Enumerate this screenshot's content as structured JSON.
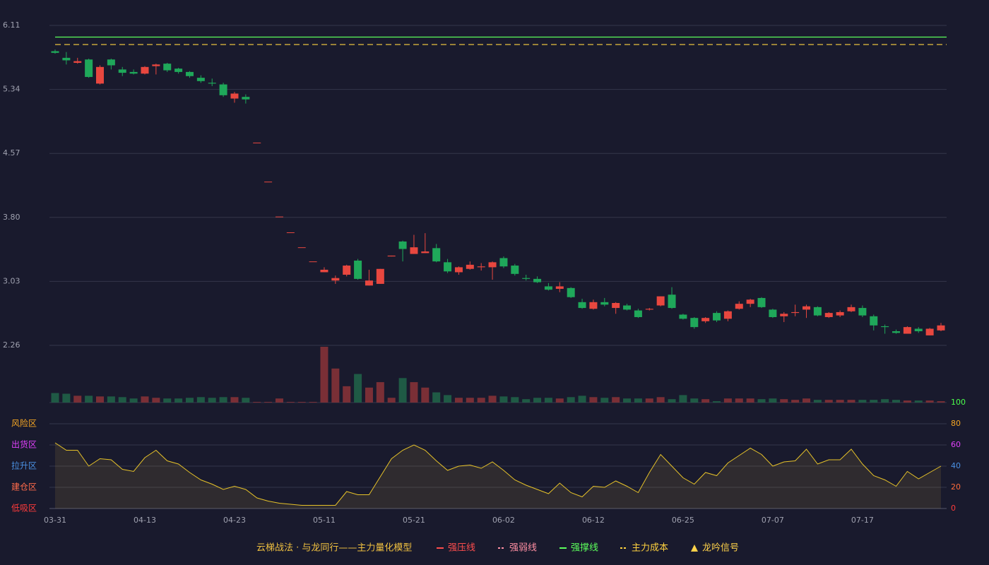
{
  "chart_data": {
    "type": "candlestick",
    "categories": [
      "03-31",
      null,
      null,
      null,
      null,
      null,
      null,
      null,
      "04-13",
      null,
      null,
      null,
      null,
      null,
      null,
      null,
      "04-23",
      null,
      null,
      null,
      null,
      null,
      null,
      null,
      "05-11",
      null,
      null,
      null,
      null,
      null,
      null,
      null,
      "05-21",
      null,
      null,
      null,
      null,
      null,
      null,
      null,
      "06-02",
      null,
      null,
      null,
      null,
      null,
      null,
      null,
      "06-12",
      null,
      null,
      null,
      null,
      null,
      null,
      null,
      "06-25",
      null,
      null,
      null,
      null,
      null,
      null,
      null,
      "07-07",
      null,
      null,
      null,
      null,
      null,
      null,
      null,
      "07-17",
      null,
      null,
      null,
      null,
      null,
      null,
      null
    ],
    "open": [
      5.8,
      5.72,
      5.66,
      5.7,
      5.41,
      5.7,
      5.58,
      5.55,
      5.53,
      5.62,
      5.65,
      5.59,
      5.55,
      5.48,
      5.42,
      5.4,
      5.23,
      5.25,
      4.7,
      4.23,
      3.81,
      3.62,
      3.44,
      3.27,
      3.14,
      3.04,
      3.11,
      3.28,
      2.98,
      3.0,
      3.33,
      3.51,
      3.36,
      3.37,
      3.43,
      3.26,
      3.14,
      3.18,
      3.2,
      3.2,
      3.31,
      3.22,
      3.07,
      3.06,
      2.97,
      2.94,
      2.95,
      2.78,
      2.7,
      2.78,
      2.71,
      2.74,
      2.68,
      2.69,
      2.74,
      2.87,
      2.63,
      2.59,
      2.55,
      2.65,
      2.58,
      2.7,
      2.76,
      2.83,
      2.69,
      2.61,
      2.65,
      2.69,
      2.72,
      2.6,
      2.62,
      2.67,
      2.71,
      2.61,
      2.49,
      2.43,
      2.4,
      2.46,
      2.38,
      2.44
    ],
    "high": [
      5.82,
      5.79,
      5.72,
      5.71,
      5.63,
      5.71,
      5.61,
      5.58,
      5.62,
      5.65,
      5.66,
      5.6,
      5.56,
      5.51,
      5.47,
      5.42,
      5.31,
      5.28,
      4.7,
      4.23,
      3.81,
      3.62,
      3.44,
      3.27,
      3.2,
      3.1,
      3.23,
      3.3,
      3.17,
      3.18,
      3.34,
      3.52,
      3.59,
      3.61,
      3.48,
      3.3,
      3.21,
      3.27,
      3.25,
      3.27,
      3.33,
      3.24,
      3.11,
      3.09,
      3.01,
      3.02,
      2.96,
      2.82,
      2.81,
      2.83,
      2.78,
      2.76,
      2.7,
      2.71,
      2.85,
      2.96,
      2.64,
      2.6,
      2.6,
      2.67,
      2.68,
      2.79,
      2.82,
      2.84,
      2.7,
      2.66,
      2.75,
      2.75,
      2.73,
      2.66,
      2.68,
      2.75,
      2.74,
      2.63,
      2.51,
      2.45,
      2.49,
      2.48,
      2.47,
      2.53
    ],
    "low": [
      5.77,
      5.64,
      5.65,
      5.48,
      5.4,
      5.58,
      5.5,
      5.52,
      5.52,
      5.52,
      5.55,
      5.53,
      5.48,
      5.42,
      5.38,
      5.25,
      5.18,
      5.17,
      4.7,
      4.23,
      3.81,
      3.62,
      3.44,
      3.27,
      3.14,
      3.0,
      3.09,
      3.05,
      2.98,
      3.0,
      3.33,
      3.27,
      3.36,
      3.37,
      3.26,
      3.13,
      3.11,
      3.17,
      3.16,
      3.05,
      3.19,
      3.1,
      3.04,
      3.01,
      2.92,
      2.9,
      2.83,
      2.7,
      2.69,
      2.73,
      2.64,
      2.68,
      2.59,
      2.68,
      2.73,
      2.7,
      2.57,
      2.46,
      2.53,
      2.54,
      2.55,
      2.69,
      2.72,
      2.71,
      2.59,
      2.54,
      2.61,
      2.59,
      2.61,
      2.59,
      2.6,
      2.66,
      2.6,
      2.44,
      2.4,
      2.4,
      2.4,
      2.41,
      2.38,
      2.43
    ],
    "close": [
      5.78,
      5.69,
      5.68,
      5.49,
      5.61,
      5.63,
      5.54,
      5.53,
      5.61,
      5.64,
      5.57,
      5.55,
      5.5,
      5.44,
      5.41,
      5.27,
      5.29,
      5.22,
      4.7,
      4.23,
      3.81,
      3.62,
      3.44,
      3.27,
      3.17,
      3.07,
      3.22,
      3.06,
      3.04,
      3.18,
      3.34,
      3.42,
      3.44,
      3.39,
      3.27,
      3.15,
      3.2,
      3.23,
      3.21,
      3.26,
      3.21,
      3.12,
      3.06,
      3.02,
      2.93,
      2.97,
      2.84,
      2.71,
      2.78,
      2.75,
      2.77,
      2.69,
      2.6,
      2.7,
      2.85,
      2.71,
      2.58,
      2.48,
      2.59,
      2.56,
      2.67,
      2.76,
      2.81,
      2.72,
      2.6,
      2.64,
      2.66,
      2.73,
      2.62,
      2.65,
      2.66,
      2.72,
      2.62,
      2.5,
      2.48,
      2.41,
      2.48,
      2.43,
      2.46,
      2.5
    ],
    "up_color": "#e8473f",
    "down_color": "#1fa85a",
    "ylim": [
      2.26,
      6.11
    ],
    "yticks": [
      6.11,
      5.34,
      4.57,
      {
        "value": 3.8,
        "label": "3.80"
      },
      3.03,
      2.26
    ],
    "grid": true,
    "volume": {
      "values": [
        14,
        13,
        10,
        10,
        9,
        9,
        8,
        6,
        9,
        7,
        6,
        6,
        7,
        8,
        7,
        8,
        8,
        7,
        1,
        1,
        6,
        1,
        1,
        1,
        82,
        50,
        24,
        42,
        22,
        30,
        7,
        36,
        30,
        22,
        15,
        11,
        7,
        7,
        7,
        10,
        9,
        8,
        5,
        7,
        7,
        6,
        8,
        10,
        8,
        7,
        8,
        6,
        6,
        6,
        8,
        5,
        11,
        6,
        5,
        2,
        6,
        6,
        6,
        5,
        6,
        5,
        4,
        6,
        4,
        4,
        4,
        4,
        4,
        4,
        5,
        4,
        3,
        3,
        3,
        2
      ],
      "ylim": [
        0,
        82
      ],
      "up_color": "#7a2f36",
      "down_color": "#1f5a45"
    },
    "oscillator": {
      "values": [
        62,
        55,
        55,
        40,
        47,
        46,
        37,
        35,
        48,
        55,
        45,
        42,
        34,
        27,
        23,
        18,
        21,
        18,
        10,
        7,
        5,
        4,
        3,
        3,
        3,
        3,
        16,
        13,
        13,
        30,
        47,
        55,
        60,
        55,
        45,
        36,
        40,
        41,
        38,
        44,
        36,
        27,
        22,
        18,
        14,
        24,
        15,
        11,
        21,
        20,
        26,
        21,
        15,
        34,
        51,
        40,
        29,
        23,
        34,
        31,
        43,
        50,
        57,
        51,
        40,
        44,
        45,
        56,
        42,
        46,
        46,
        56,
        42,
        31,
        27,
        21,
        35,
        28,
        34,
        40
      ],
      "color": "#e6c229",
      "ylim": [
        0,
        100
      ],
      "yticks": [
        100,
        80,
        60,
        40,
        20,
        0
      ],
      "ytick_colors": [
        "#4cff4c",
        "#f5a623",
        "#e040fb",
        "#4a90e2",
        "#ff6b3b",
        "#ff3b3b"
      ],
      "zones": [
        {
          "label": "风险区",
          "value": 80,
          "color": "#f5a623"
        },
        {
          "label": "出货区",
          "value": 60,
          "color": "#e040fb"
        },
        {
          "label": "拉升区",
          "value": 40,
          "color": "#4a90e2"
        },
        {
          "label": "建仓区",
          "value": 20,
          "color": "#ff6b4a"
        },
        {
          "label": "低吸区",
          "value": 0,
          "color": "#ff3b3b"
        }
      ]
    },
    "legend_title": "云梯战法 · 与龙同行——主力量化模型",
    "legend": [
      {
        "name": "强压线",
        "color": "#ff4d4d",
        "style": "solid"
      },
      {
        "name": "强弱线",
        "color": "#ff8fa3",
        "style": "dashed"
      },
      {
        "name": "强撑线",
        "color": "#5cff5c",
        "style": "solid",
        "value": 5.97
      },
      {
        "name": "主力成本",
        "color": "#ffd23f",
        "style": "dashed",
        "value": 5.88
      },
      {
        "name": "龙吟信号",
        "color": "#ffd24a",
        "style": "triangle"
      }
    ]
  }
}
